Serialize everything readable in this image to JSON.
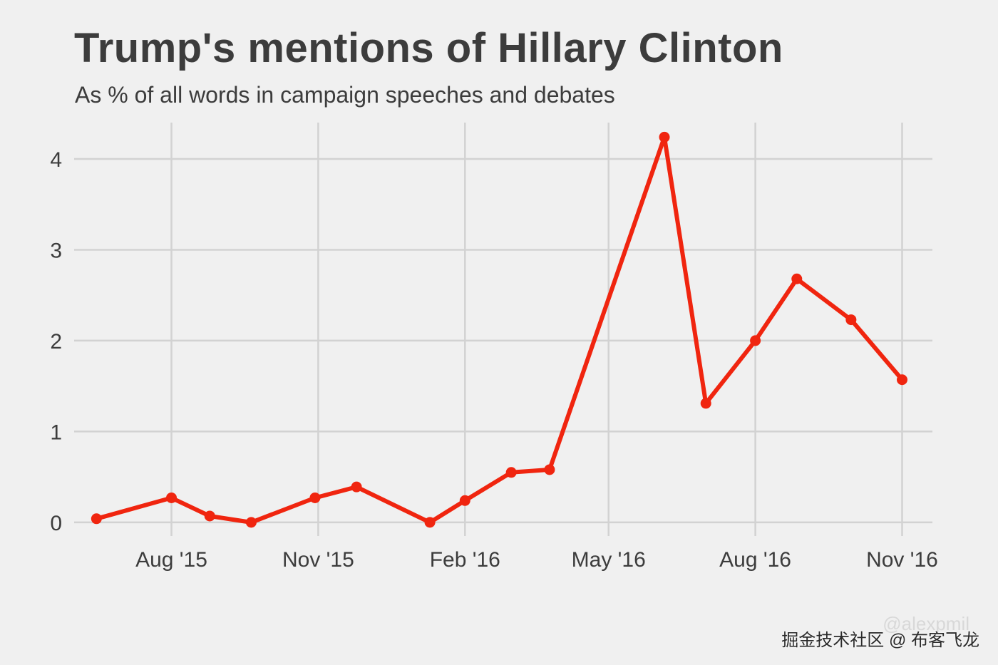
{
  "chart_data": {
    "type": "line",
    "title": "Trump's mentions of Hillary Clinton",
    "subtitle": "As % of all words in campaign speeches and debates",
    "xlabel": "",
    "ylabel": "",
    "x_dates": [
      "2015-06-15",
      "2015-08-01",
      "2015-08-25",
      "2015-09-20",
      "2015-10-30",
      "2015-11-25",
      "2016-01-10",
      "2016-02-01",
      "2016-03-01",
      "2016-03-25",
      "2016-06-05",
      "2016-07-01",
      "2016-08-01",
      "2016-08-27",
      "2016-09-30",
      "2016-11-01"
    ],
    "values": [
      0.04,
      0.27,
      0.07,
      0.0,
      0.27,
      0.39,
      0.0,
      0.24,
      0.55,
      0.58,
      4.24,
      1.31,
      2.0,
      2.68,
      2.23,
      1.57
    ],
    "x_range": [
      "2015-06-01",
      "2016-11-20"
    ],
    "ylim": [
      -0.15,
      4.4
    ],
    "y_ticks": [
      0,
      1,
      2,
      3,
      4
    ],
    "x_ticks": [
      {
        "date": "2015-08-01",
        "label": "Aug '15"
      },
      {
        "date": "2015-11-01",
        "label": "Nov '15"
      },
      {
        "date": "2016-02-01",
        "label": "Feb '16"
      },
      {
        "date": "2016-05-01",
        "label": "May '16"
      },
      {
        "date": "2016-08-01",
        "label": "Aug '16"
      },
      {
        "date": "2016-11-01",
        "label": "Nov '16"
      }
    ],
    "grid": true,
    "legend": "none",
    "line_color": "#f0250f"
  },
  "footer": {
    "watermark": "@alexpmil",
    "credit": "掘金技术社区 @ 布客飞龙"
  }
}
